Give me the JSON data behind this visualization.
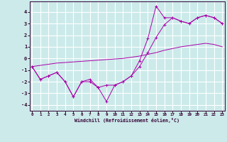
{
  "xlabel": "Windchill (Refroidissement éolien,°C)",
  "background_color": "#cceaea",
  "grid_color": "#ffffff",
  "line_color": "#aa00aa",
  "x_hours": [
    0,
    1,
    2,
    3,
    4,
    5,
    6,
    7,
    8,
    9,
    10,
    11,
    12,
    13,
    14,
    15,
    16,
    17,
    18,
    19,
    20,
    21,
    22,
    23
  ],
  "line1": [
    -0.7,
    -1.8,
    -1.5,
    -1.2,
    -2.0,
    -3.3,
    -2.0,
    -1.8,
    -2.5,
    -3.7,
    -2.3,
    -2.0,
    -1.5,
    -0.2,
    1.7,
    4.5,
    3.5,
    3.5,
    3.2,
    3.0,
    3.5,
    3.7,
    3.5,
    3.0
  ],
  "line2": [
    -0.7,
    -1.8,
    -1.5,
    -1.2,
    -2.0,
    -3.3,
    -2.0,
    -2.0,
    -2.5,
    -2.3,
    -2.3,
    -2.0,
    -1.5,
    -0.7,
    0.5,
    1.8,
    2.9,
    3.5,
    3.2,
    3.0,
    3.5,
    3.7,
    3.5,
    3.0
  ],
  "line3": [
    -0.7,
    -0.6,
    -0.5,
    -0.4,
    -0.35,
    -0.3,
    -0.25,
    -0.2,
    -0.15,
    -0.1,
    -0.05,
    0.0,
    0.1,
    0.2,
    0.35,
    0.5,
    0.7,
    0.85,
    1.0,
    1.1,
    1.2,
    1.3,
    1.2,
    1.0
  ],
  "ylim": [
    -4.5,
    4.9
  ],
  "yticks": [
    -4,
    -3,
    -2,
    -1,
    0,
    1,
    2,
    3,
    4
  ],
  "xlim": [
    -0.3,
    23.3
  ],
  "xticks": [
    0,
    1,
    2,
    3,
    4,
    5,
    6,
    7,
    8,
    9,
    10,
    11,
    12,
    13,
    14,
    15,
    16,
    17,
    18,
    19,
    20,
    21,
    22,
    23
  ]
}
